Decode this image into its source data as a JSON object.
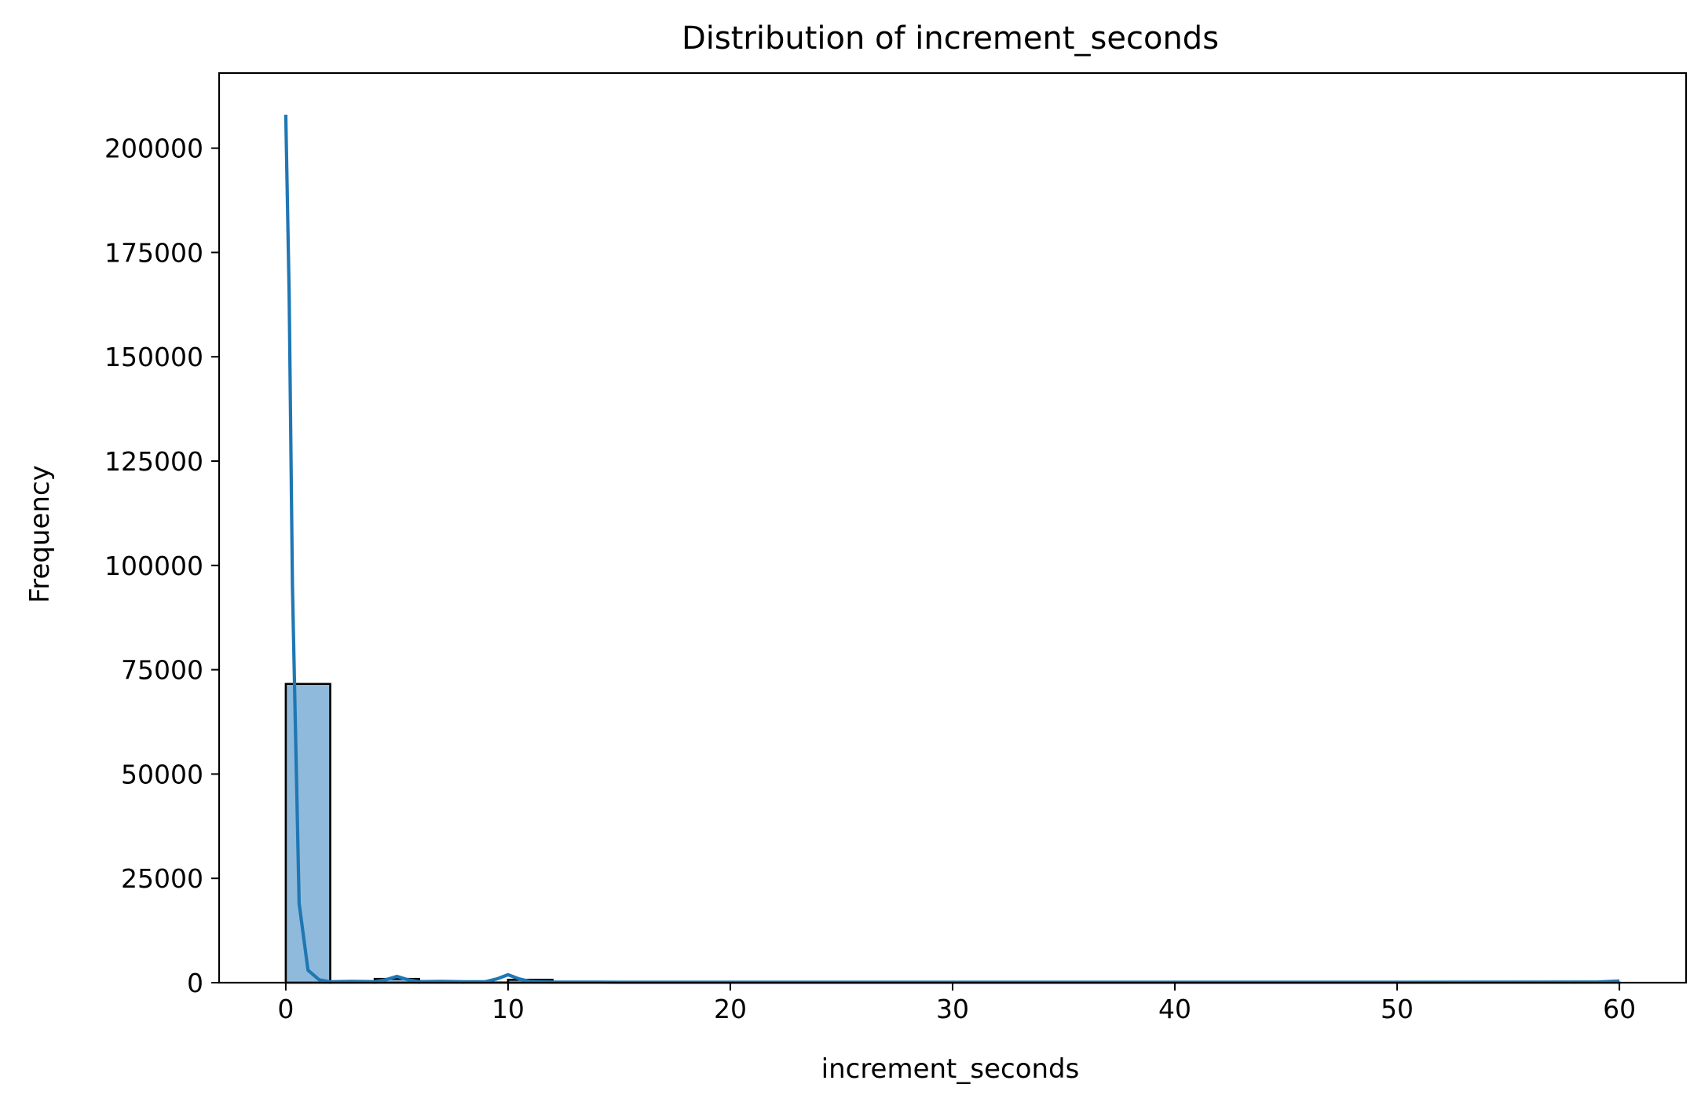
{
  "chart_data": {
    "type": "bar",
    "title": "Distribution of increment_seconds",
    "xlabel": "increment_seconds",
    "ylabel": "Frequency",
    "xlim": [
      -3,
      63
    ],
    "ylim": [
      0,
      218000
    ],
    "xticks": [
      0,
      10,
      20,
      30,
      40,
      50,
      60
    ],
    "yticks": [
      0,
      25000,
      50000,
      75000,
      100000,
      125000,
      150000,
      175000,
      200000
    ],
    "grid": false,
    "legend": "none",
    "histogram": {
      "name": "increment_seconds",
      "bins": [
        {
          "x0": 0,
          "x1": 2,
          "count": 71600
        },
        {
          "x0": 2,
          "x1": 4,
          "count": 60
        },
        {
          "x0": 4,
          "x1": 6,
          "count": 900
        },
        {
          "x0": 6,
          "x1": 8,
          "count": 120
        },
        {
          "x0": 8,
          "x1": 10,
          "count": 40
        },
        {
          "x0": 10,
          "x1": 12,
          "count": 700
        },
        {
          "x0": 12,
          "x1": 14,
          "count": 30
        },
        {
          "x0": 14,
          "x1": 16,
          "count": 40
        },
        {
          "x0": 16,
          "x1": 18,
          "count": 20
        },
        {
          "x0": 18,
          "x1": 20,
          "count": 10
        },
        {
          "x0": 20,
          "x1": 22,
          "count": 10
        },
        {
          "x0": 22,
          "x1": 24,
          "count": 10
        },
        {
          "x0": 24,
          "x1": 26,
          "count": 5
        },
        {
          "x0": 26,
          "x1": 28,
          "count": 5
        },
        {
          "x0": 28,
          "x1": 30,
          "count": 10
        },
        {
          "x0": 30,
          "x1": 32,
          "count": 10
        },
        {
          "x0": 32,
          "x1": 34,
          "count": 5
        },
        {
          "x0": 34,
          "x1": 36,
          "count": 5
        },
        {
          "x0": 36,
          "x1": 38,
          "count": 5
        },
        {
          "x0": 38,
          "x1": 40,
          "count": 5
        },
        {
          "x0": 40,
          "x1": 42,
          "count": 5
        },
        {
          "x0": 42,
          "x1": 44,
          "count": 5
        },
        {
          "x0": 44,
          "x1": 46,
          "count": 5
        },
        {
          "x0": 46,
          "x1": 48,
          "count": 5
        },
        {
          "x0": 48,
          "x1": 50,
          "count": 5
        },
        {
          "x0": 50,
          "x1": 52,
          "count": 5
        },
        {
          "x0": 52,
          "x1": 54,
          "count": 5
        },
        {
          "x0": 54,
          "x1": 56,
          "count": 5
        },
        {
          "x0": 56,
          "x1": 58,
          "count": 5
        },
        {
          "x0": 58,
          "x1": 60,
          "count": 20
        }
      ]
    },
    "kde": {
      "x": [
        0,
        0.15,
        0.3,
        0.6,
        1.0,
        1.5,
        2.0,
        3.0,
        4.0,
        4.5,
        5.0,
        5.5,
        6.0,
        7.0,
        8.0,
        9.0,
        9.5,
        10.0,
        10.5,
        11.0,
        12.0,
        15.0,
        20.0,
        30.0,
        40.0,
        50.0,
        59.0,
        60.0
      ],
      "y": [
        208000,
        165000,
        95000,
        19000,
        3000,
        700,
        200,
        300,
        250,
        700,
        1500,
        700,
        250,
        300,
        200,
        250,
        900,
        1900,
        900,
        300,
        150,
        100,
        100,
        100,
        100,
        100,
        150,
        400
      ]
    },
    "colors": {
      "bar_fill": "#8fbadb",
      "bar_edge": "#000000",
      "kde_line": "#1f77b4",
      "axes": "#000000"
    }
  }
}
